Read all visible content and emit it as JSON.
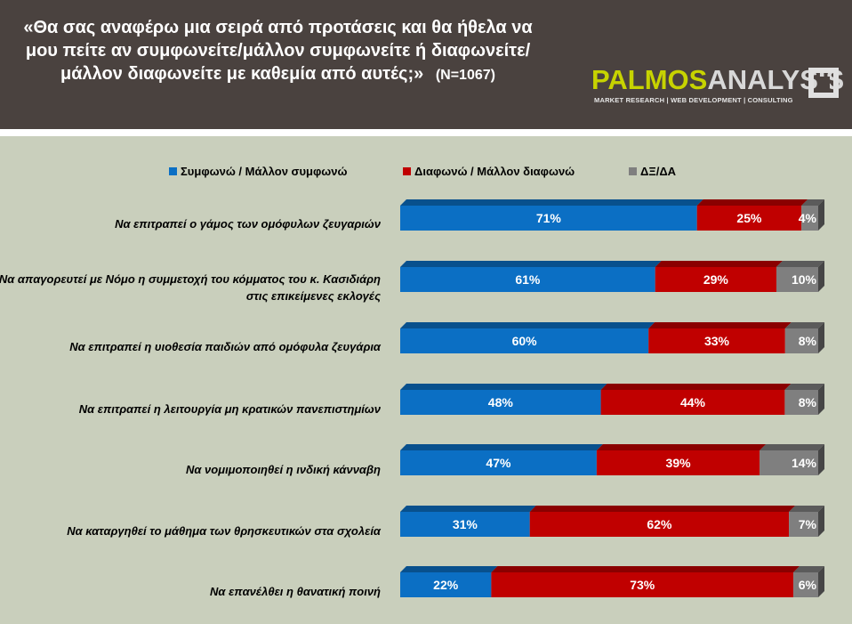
{
  "header": {
    "title": "«Θα σας αναφέρω μια σειρά από προτάσεις και θα ήθελα να μου πείτε αν συμφωνείτε/μάλλον συμφωνείτε ή διαφωνείτε/ μάλλον διαφωνείτε με καθεμία από αυτές;»",
    "sample": "(N=1067)",
    "logo_part1": "PALMOS",
    "logo_part2": "ANALYSIS",
    "logo_tagline": "MARKET RESEARCH | WEB DEVELOPMENT | CONSULTING"
  },
  "colors": {
    "header_bg": "#4a423f",
    "background": "#c9cfbc",
    "agree": "#0b6fc4",
    "disagree": "#c00000",
    "dkna": "#7f7f7f"
  },
  "chart_data": {
    "type": "bar",
    "orientation": "horizontal",
    "stacked": true,
    "percent": true,
    "xlim": [
      0,
      100
    ],
    "legend_position": "top",
    "categories": [
      "Να επιτραπεί ο γάμος των ομόφυλων ζευγαριών",
      "Να απαγορευτεί με Νόμο η συμμετοχή του κόμματος του κ. Κασιδιάρη στις επικείμενες εκλογές",
      "Να επιτραπεί η υιοθεσία παιδιών από ομόφυλα ζευγάρια",
      "Να επιτραπεί η λειτουργία μη κρατικών πανεπιστημίων",
      "Να νομιμοποιηθεί η ινδική κάνναβη",
      "Να καταργηθεί το μάθημα των θρησκευτικών στα σχολεία",
      "Να επανέλθει η θανατική ποινή"
    ],
    "series": [
      {
        "name": "Συμφωνώ / Μάλλον συμφωνώ",
        "color": "#0b6fc4",
        "values": [
          71,
          61,
          60,
          48,
          47,
          31,
          22
        ]
      },
      {
        "name": "Διαφωνώ / Μάλλον διαφωνώ",
        "color": "#c00000",
        "values": [
          25,
          29,
          33,
          44,
          39,
          62,
          73
        ]
      },
      {
        "name": "ΔΞ/ΔΑ",
        "color": "#7f7f7f",
        "values": [
          4,
          10,
          8,
          8,
          14,
          7,
          6
        ]
      }
    ]
  }
}
